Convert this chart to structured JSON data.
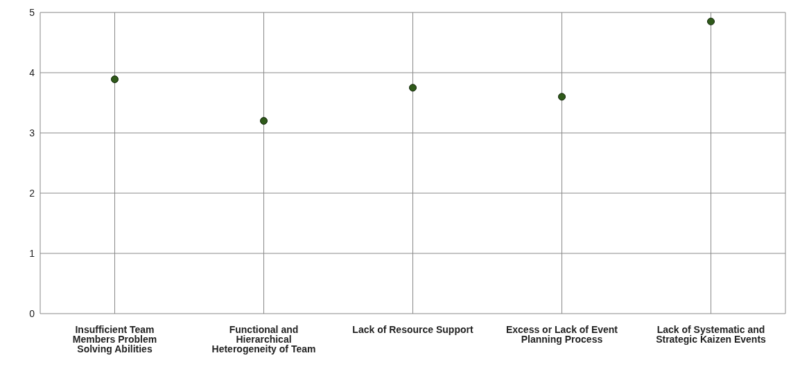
{
  "chart_data": {
    "type": "scatter",
    "categories": [
      "Insufficient Team Members Problem Solving Abilities",
      "Functional and Hierarchical Heterogeneity of Team",
      "Lack of Resource Support",
      "Excess or Lack of Event Planning Process",
      "Lack of Systematic and Strategic Kaizen Events"
    ],
    "series": [
      {
        "color": "#2f5a1a",
        "values": [
          3.89,
          3.2,
          3.75,
          3.6,
          4.85
        ]
      }
    ],
    "ylim": [
      0,
      5
    ],
    "yticks": [
      0,
      1,
      2,
      3,
      4,
      5
    ],
    "grid": true,
    "marker": "circle",
    "legend": false
  }
}
